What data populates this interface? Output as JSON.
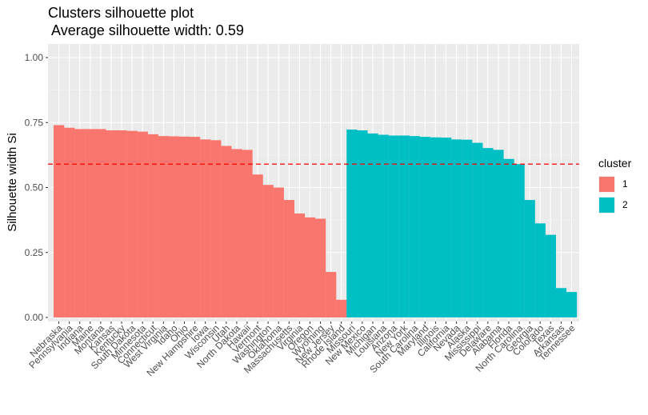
{
  "chart_data": {
    "type": "bar",
    "title": "Clusters silhouette plot",
    "subtitle": " Average silhouette width: 0.59",
    "xlabel": "",
    "ylabel": "Silhouette width Si",
    "ylim": [
      0,
      1
    ],
    "yticks": [
      0,
      0.25,
      0.5,
      0.75,
      1
    ],
    "ytick_labels": [
      "0.00",
      "0.25",
      "0.50",
      "0.75",
      "1.00"
    ],
    "avg_line": 0.59,
    "grid": true,
    "legend_position": "right",
    "legend_title": "cluster",
    "series": [
      {
        "name": "1",
        "color": "#F8766D",
        "categories": [
          "Nebraska",
          "Pennsylvania",
          "Indiana",
          "Maine",
          "Montana",
          "Kansas",
          "Kentucky",
          "South Dakota",
          "Minnesota",
          "Connecticut",
          "West Virginia",
          "Idaho",
          "Ohio",
          "New Hampshire",
          "Iowa",
          "Wisconsin",
          "Utah",
          "North Dakota",
          "Hawaii",
          "Vermont",
          "Washington",
          "Oklahoma",
          "Massachusetts",
          "Virginia",
          "Oregon",
          "Wyoming",
          "New Jersey",
          "Rhode Island"
        ],
        "values": [
          0.74,
          0.73,
          0.725,
          0.725,
          0.725,
          0.72,
          0.72,
          0.718,
          0.715,
          0.705,
          0.698,
          0.697,
          0.696,
          0.695,
          0.685,
          0.682,
          0.66,
          0.648,
          0.645,
          0.55,
          0.51,
          0.5,
          0.452,
          0.4,
          0.385,
          0.38,
          0.175,
          0.068
        ]
      },
      {
        "name": "2",
        "color": "#00BFC4",
        "categories": [
          "Missouri",
          "New Mexico",
          "Michigan",
          "Louisiana",
          "Arizona",
          "New York",
          "South Carolina",
          "Maryland",
          "Illinois",
          "California",
          "Nevada",
          "Alaska",
          "Mississippi",
          "Delaware",
          "Alabama",
          "Florida",
          "North Carolina",
          "Georgia",
          "Colorado",
          "Texas",
          "Arkansas",
          "Tennessee"
        ],
        "values": [
          0.723,
          0.72,
          0.708,
          0.703,
          0.7,
          0.7,
          0.698,
          0.695,
          0.693,
          0.692,
          0.685,
          0.684,
          0.672,
          0.652,
          0.645,
          0.61,
          0.59,
          0.452,
          0.362,
          0.318,
          0.113,
          0.098
        ]
      }
    ]
  }
}
